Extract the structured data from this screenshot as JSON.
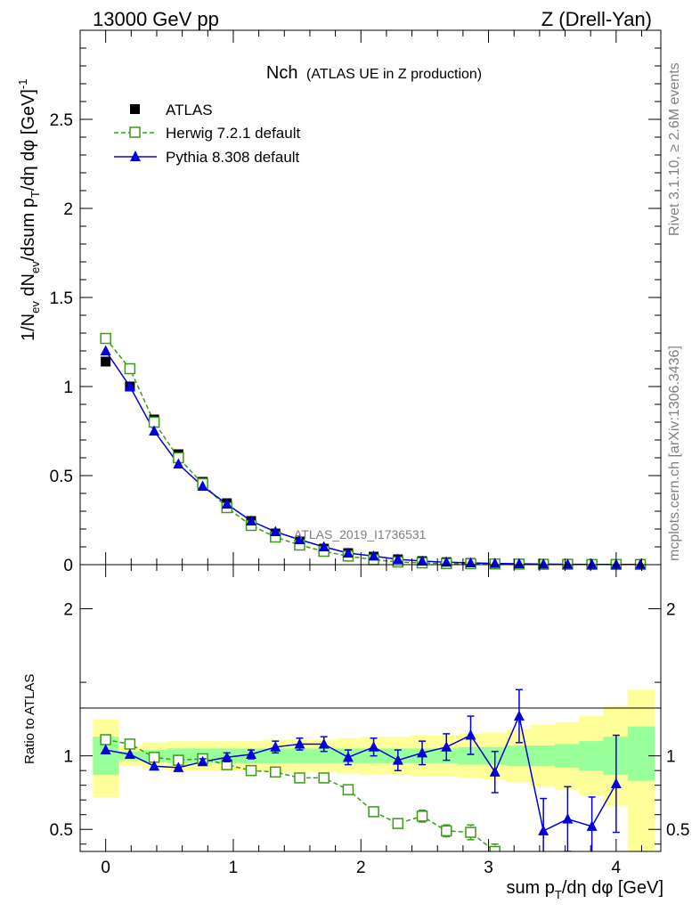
{
  "header": {
    "left": "13000 GeV pp",
    "right": "Z (Drell-Yan)"
  },
  "plot_title": {
    "main": "Nch",
    "sub": "(ATLAS UE in Z production)"
  },
  "side_labels": {
    "rivet": "Rivet 3.1.10, ≥ 2.6M events",
    "mcplots": "mcplots.cern.ch [arXiv:1306.3436]"
  },
  "watermark": "ATLAS_2019_I1736531",
  "colors": {
    "atlas": "#000000",
    "herwig": "#3a9a1a",
    "pythia": "#0000dd",
    "band_inner": "#99ff99",
    "band_outer": "#ffff99"
  },
  "chart_data": [
    {
      "type": "scatter",
      "ylabel": "1/N_ev dN_ev/dsum p_T/dη dφ [GeV]^-1",
      "xlim": [
        -0.2,
        4.35
      ],
      "ylim": [
        0,
        3.0
      ],
      "yticks": [
        0,
        0.5,
        1,
        1.5,
        2,
        2.5
      ],
      "ytick_labels": [
        "0",
        "0.5",
        "1",
        "1.5",
        "2",
        "2.5"
      ],
      "legend_position": "top-left",
      "x": [
        0.0,
        0.19,
        0.38,
        0.57,
        0.76,
        0.95,
        1.14,
        1.33,
        1.52,
        1.71,
        1.9,
        2.1,
        2.29,
        2.48,
        2.67,
        2.86,
        3.05,
        3.24,
        3.43,
        3.62,
        3.81,
        4.0,
        4.19
      ],
      "series": [
        {
          "name": "ATLAS",
          "marker": "filled-square",
          "values": [
            1.14,
            1.0,
            0.815,
            0.62,
            0.465,
            0.345,
            0.245,
            0.175,
            0.13,
            0.09,
            0.065,
            0.045,
            0.03,
            0.02,
            0.014,
            0.01,
            0.007,
            0.005,
            0.003,
            0.003,
            0.002,
            0.002,
            0.001
          ]
        },
        {
          "name": "Herwig 7.2.1 default",
          "marker": "open-square",
          "line": "dashed",
          "values": [
            1.27,
            1.1,
            0.8,
            0.6,
            0.455,
            0.32,
            0.22,
            0.155,
            0.11,
            0.075,
            0.048,
            0.028,
            0.015,
            0.01,
            0.006,
            0.005,
            0.004,
            0.003,
            0.002,
            0.002,
            0.001,
            0.001,
            0.001
          ]
        },
        {
          "name": "Pythia 8.308 default",
          "marker": "filled-triangle",
          "line": "solid",
          "values": [
            1.2,
            1.0,
            0.75,
            0.565,
            0.44,
            0.34,
            0.245,
            0.185,
            0.14,
            0.1,
            0.065,
            0.048,
            0.03,
            0.02,
            0.014,
            0.01,
            0.007,
            0.005,
            0.003,
            0.002,
            0.001,
            0.001,
            0.001
          ]
        }
      ]
    },
    {
      "type": "scatter",
      "ylabel": "Ratio to ATLAS",
      "xlabel": "sum p_T/dη dφ [GeV]",
      "xlim": [
        -0.2,
        4.35
      ],
      "ylim": [
        0.35,
        2.3
      ],
      "yticks": [
        0.5,
        1,
        2
      ],
      "ytick_labels": [
        "0.5",
        "1",
        "2"
      ],
      "xticks": [
        0,
        1,
        2,
        3,
        4
      ],
      "xtick_labels": [
        "0",
        "1",
        "2",
        "3",
        "4"
      ],
      "bins": [
        [
          -0.1,
          0.1
        ],
        [
          0.1,
          0.29
        ],
        [
          0.29,
          0.48
        ],
        [
          0.48,
          0.67
        ],
        [
          0.67,
          0.86
        ],
        [
          0.86,
          1.05
        ],
        [
          1.05,
          1.24
        ],
        [
          1.24,
          1.43
        ],
        [
          1.43,
          1.62
        ],
        [
          1.62,
          1.81
        ],
        [
          1.81,
          2.0
        ],
        [
          2.0,
          2.19
        ],
        [
          2.19,
          2.38
        ],
        [
          2.38,
          2.57
        ],
        [
          2.57,
          2.76
        ],
        [
          2.76,
          2.95
        ],
        [
          2.95,
          3.14
        ],
        [
          3.14,
          3.33
        ],
        [
          3.33,
          3.52
        ],
        [
          3.52,
          3.71
        ],
        [
          3.71,
          3.9
        ],
        [
          3.9,
          4.09
        ],
        [
          4.09,
          4.3
        ]
      ],
      "band_inner": [
        [
          0.87,
          1.13
        ],
        [
          0.97,
          1.03
        ],
        [
          0.96,
          1.04
        ],
        [
          0.95,
          1.05
        ],
        [
          0.95,
          1.05
        ],
        [
          0.95,
          1.05
        ],
        [
          0.95,
          1.05
        ],
        [
          0.95,
          1.05
        ],
        [
          0.95,
          1.05
        ],
        [
          0.95,
          1.05
        ],
        [
          0.95,
          1.05
        ],
        [
          0.95,
          1.05
        ],
        [
          0.95,
          1.05
        ],
        [
          0.95,
          1.05
        ],
        [
          0.95,
          1.05
        ],
        [
          0.94,
          1.06
        ],
        [
          0.94,
          1.06
        ],
        [
          0.93,
          1.07
        ],
        [
          0.93,
          1.07
        ],
        [
          0.92,
          1.08
        ],
        [
          0.9,
          1.1
        ],
        [
          0.87,
          1.13
        ],
        [
          0.83,
          1.2
        ]
      ],
      "band_outer": [
        [
          0.72,
          1.25
        ],
        [
          0.93,
          1.07
        ],
        [
          0.91,
          1.09
        ],
        [
          0.9,
          1.1
        ],
        [
          0.9,
          1.1
        ],
        [
          0.9,
          1.1
        ],
        [
          0.9,
          1.1
        ],
        [
          0.89,
          1.11
        ],
        [
          0.89,
          1.11
        ],
        [
          0.89,
          1.11
        ],
        [
          0.88,
          1.12
        ],
        [
          0.87,
          1.13
        ],
        [
          0.87,
          1.13
        ],
        [
          0.86,
          1.14
        ],
        [
          0.86,
          1.14
        ],
        [
          0.85,
          1.15
        ],
        [
          0.84,
          1.16
        ],
        [
          0.82,
          1.18
        ],
        [
          0.79,
          1.21
        ],
        [
          0.77,
          1.23
        ],
        [
          0.73,
          1.27
        ],
        [
          0.66,
          1.34
        ],
        [
          0.35,
          1.45
        ]
      ],
      "series": [
        {
          "name": "Herwig 7.2.1 default",
          "marker": "open-square",
          "line": "dashed",
          "values": [
            1.11,
            1.08,
            0.99,
            0.97,
            0.98,
            0.94,
            0.9,
            0.89,
            0.85,
            0.85,
            0.77,
            0.62,
            0.54,
            0.59,
            0.49,
            0.48,
            0.35,
            null,
            null,
            null,
            null,
            null,
            null
          ],
          "errors": [
            0.01,
            0.01,
            0.01,
            0.01,
            0.01,
            0.01,
            0.01,
            0.01,
            0.01,
            0.015,
            0.02,
            0.025,
            0.03,
            0.04,
            0.04,
            0.05,
            0.05,
            null,
            null,
            null,
            null,
            null,
            null
          ]
        },
        {
          "name": "Pythia 8.308 default",
          "marker": "filled-triangle",
          "line": "solid",
          "values": [
            1.04,
            1.01,
            0.93,
            0.92,
            0.96,
            0.99,
            1.01,
            1.06,
            1.08,
            1.08,
            0.99,
            1.06,
            0.97,
            1.02,
            1.06,
            1.14,
            0.89,
            1.27,
            0.49,
            0.57,
            0.52,
            0.81,
            null
          ],
          "errors": [
            0.01,
            0.01,
            0.01,
            0.015,
            0.02,
            0.03,
            0.03,
            0.04,
            0.04,
            0.05,
            0.05,
            0.06,
            0.07,
            0.08,
            0.09,
            0.13,
            0.14,
            0.18,
            0.22,
            0.22,
            0.2,
            0.33,
            null
          ]
        }
      ]
    }
  ]
}
